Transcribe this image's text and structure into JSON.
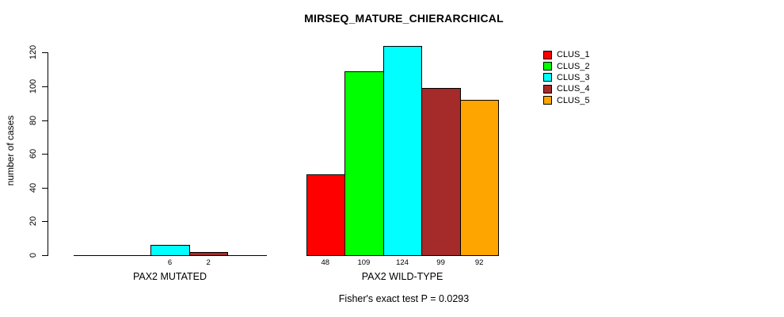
{
  "chart_data": {
    "type": "bar",
    "title": "MIRSEQ_MATURE_CHIERARCHICAL",
    "ylabel": "number of cases",
    "xlabel": "",
    "ylim": [
      0,
      124
    ],
    "yticks": [
      0,
      20,
      40,
      60,
      80,
      100,
      120
    ],
    "grid": false,
    "legend_position": "top-right",
    "background_color": "#ffffff",
    "axis_color": "#000000",
    "series": [
      {
        "name": "CLUS_1",
        "color": "#FF0000"
      },
      {
        "name": "CLUS_2",
        "color": "#00FF00"
      },
      {
        "name": "CLUS_3",
        "color": "#00FFFF"
      },
      {
        "name": "CLUS_4",
        "color": "#A52A2A"
      },
      {
        "name": "CLUS_5",
        "color": "#FFA500"
      }
    ],
    "groups": [
      {
        "label": "PAX2 MUTATED",
        "values": [
          0,
          0,
          6,
          2,
          0
        ],
        "bar_labels": [
          "",
          "",
          "6",
          "2",
          ""
        ]
      },
      {
        "label": "PAX2 WILD-TYPE",
        "values": [
          48,
          109,
          124,
          99,
          92
        ],
        "bar_labels": [
          "48",
          "109",
          "124",
          "99",
          "92"
        ]
      }
    ],
    "annotation": "Fisher's exact test P = 0.0293"
  }
}
